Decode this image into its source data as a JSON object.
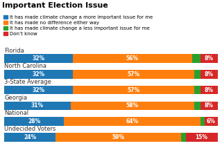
{
  "chart_data": {
    "type": "bar",
    "orientation": "horizontal",
    "stacked": true,
    "title": "Important Election Issue",
    "categories": [
      "Florida",
      "North Carolina",
      "3-State Average",
      "Georgia",
      "National",
      "Undecided Voters"
    ],
    "series": [
      {
        "name": "It has made climate change a more important issue for me",
        "values": [
          32,
          32,
          32,
          31,
          28,
          24
        ],
        "value_labels": [
          "32%",
          "32%",
          "32%",
          "31%",
          "28%",
          "24%"
        ]
      },
      {
        "name": "It has made no difference either way",
        "values": [
          56,
          57,
          57,
          58,
          64,
          59
        ],
        "value_labels": [
          "56%",
          "57%",
          "57%",
          "58%",
          "64%",
          "59%"
        ]
      },
      {
        "name": "It has made climate change a less important issue for me",
        "values": [
          4,
          3,
          3,
          3,
          2,
          2
        ],
        "value_labels": [
          null,
          null,
          null,
          null,
          null,
          null
        ]
      },
      {
        "name": "Don’t know",
        "values": [
          8,
          8,
          8,
          8,
          6,
          15
        ],
        "value_labels": [
          "8%",
          "8%",
          "8%",
          "8%",
          "6%",
          "15%"
        ]
      }
    ],
    "xlim": [
      0,
      100
    ],
    "data_labels": true,
    "tick_labels": false,
    "legend": "upper left"
  }
}
